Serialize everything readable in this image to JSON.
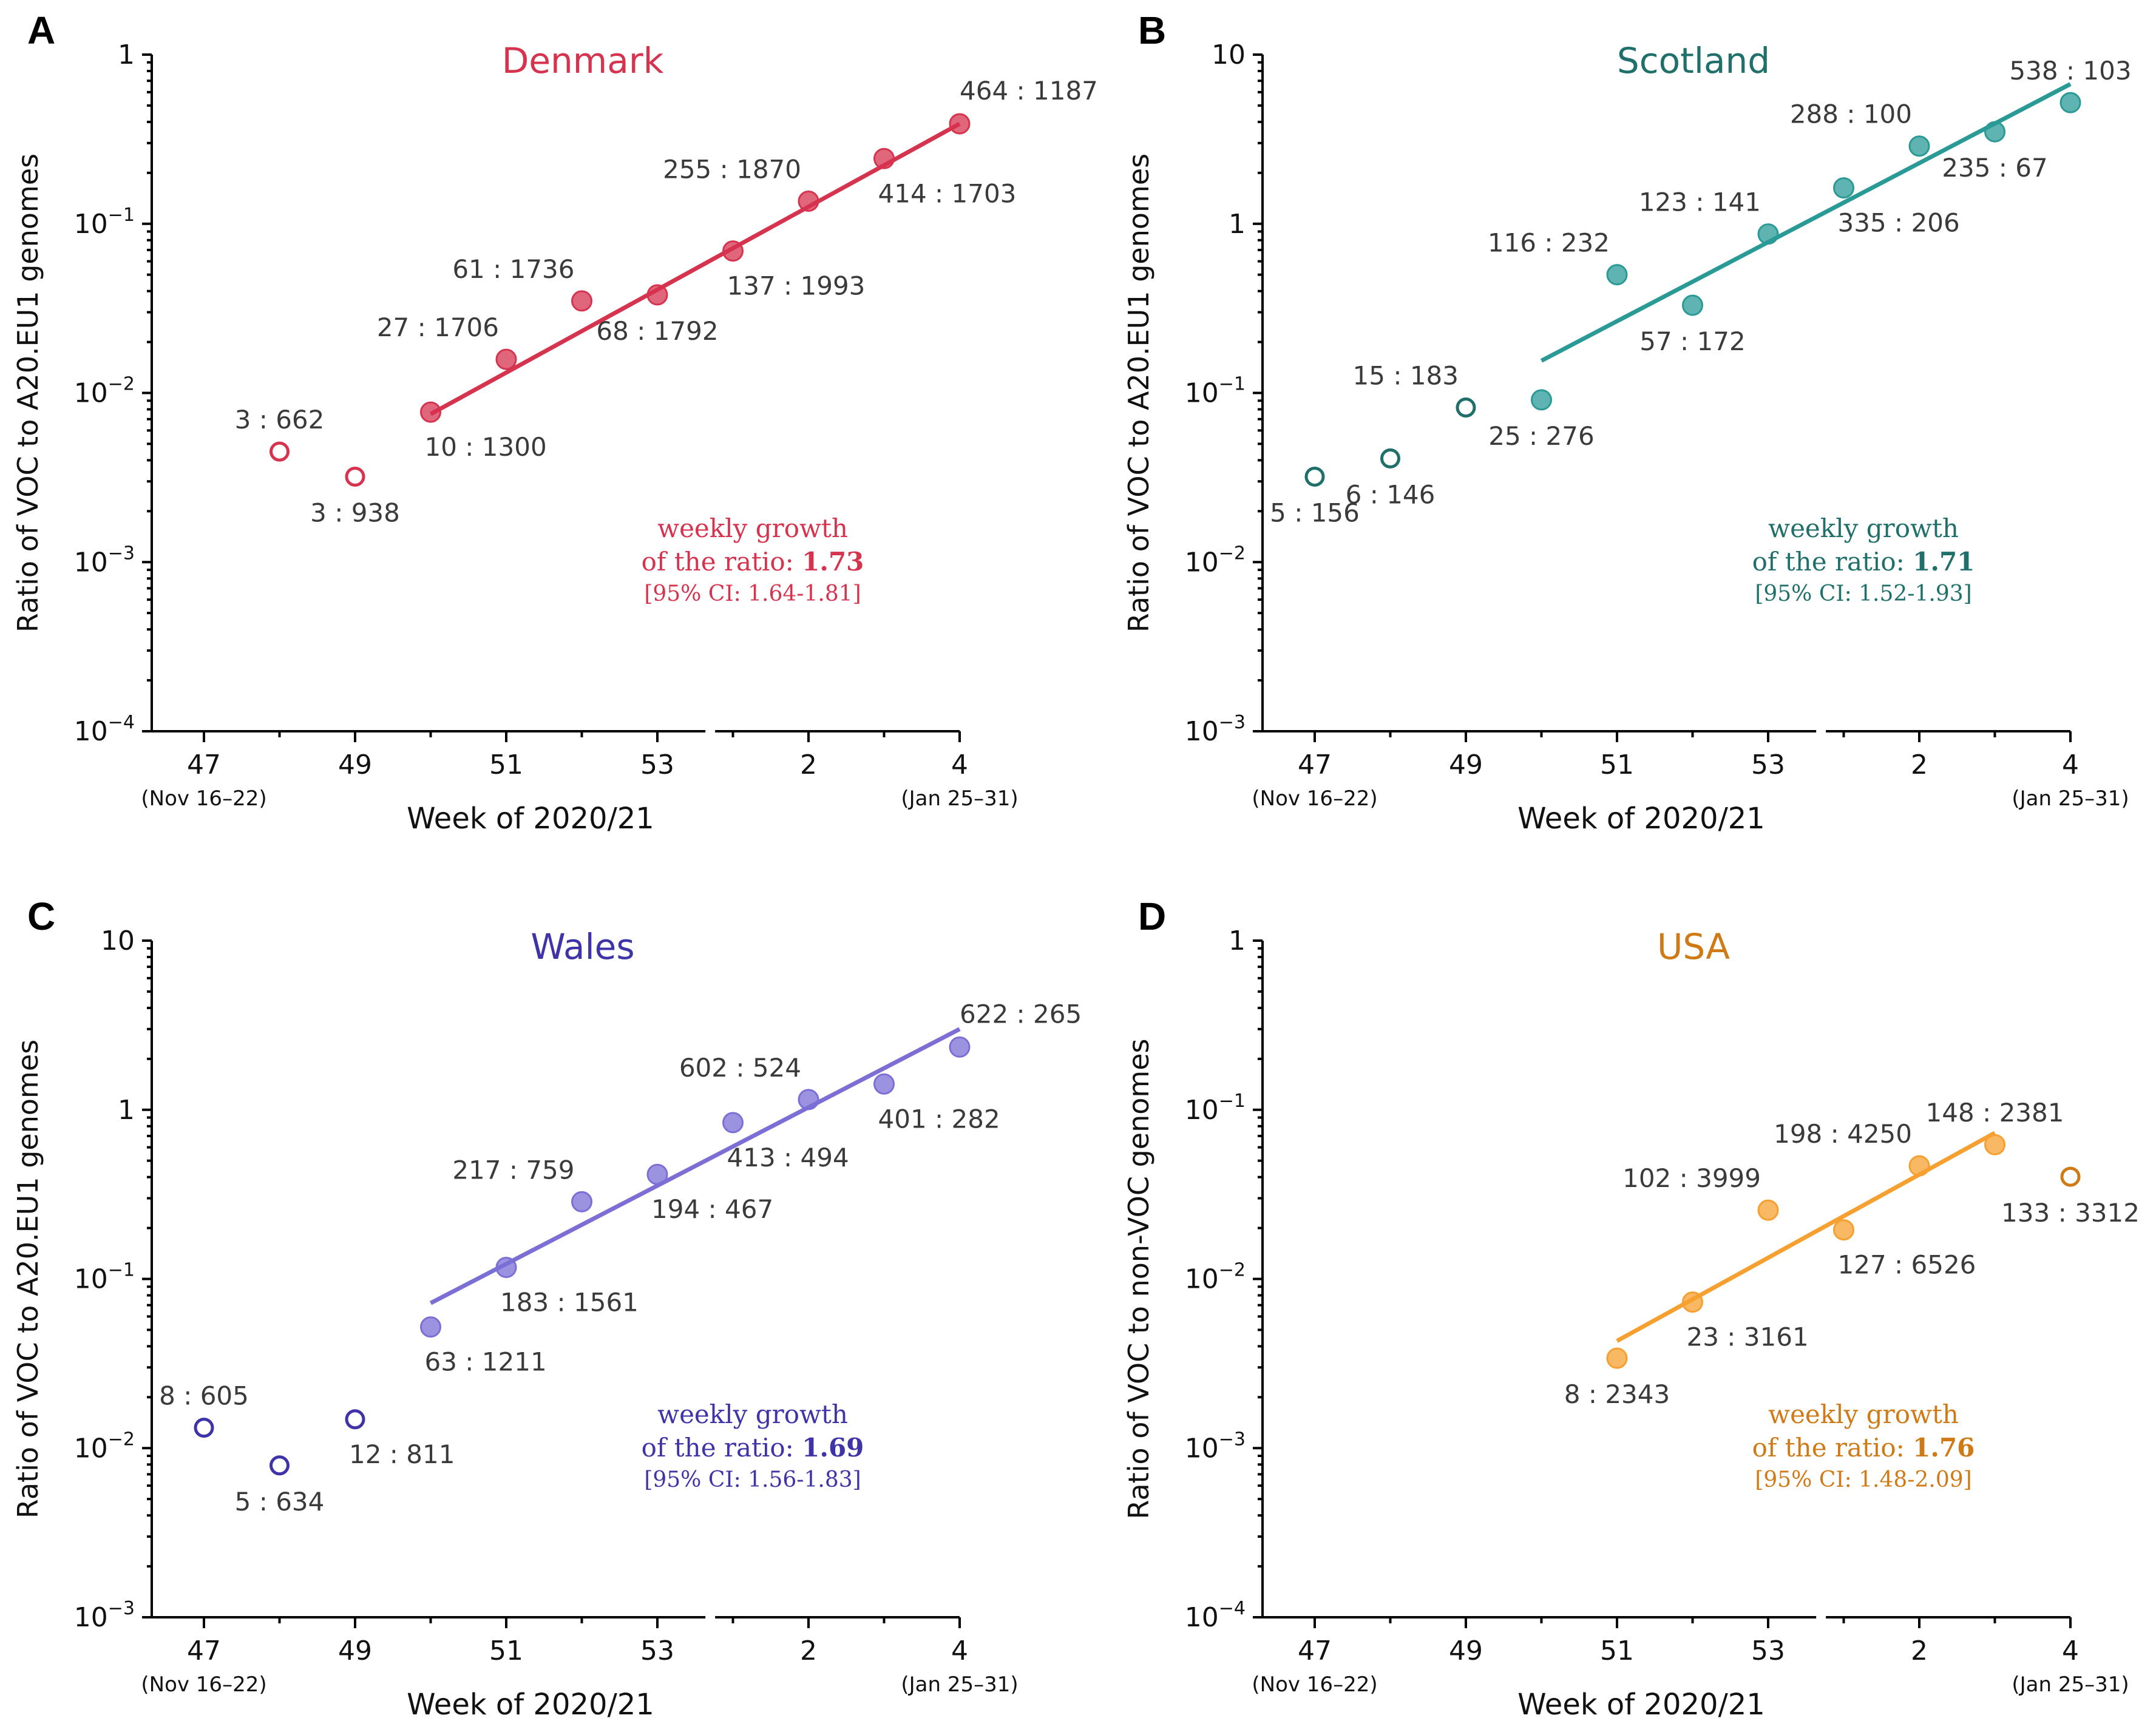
{
  "chart_data": [
    {
      "panel": "A",
      "type": "scatter",
      "title": "Denmark",
      "color": "#d6334f",
      "xlabel": "Week of 2020/21",
      "ylabel": "Ratio of VOC to A20.EU1 genomes",
      "x_ticks": [
        {
          "week": 47,
          "label": "47",
          "sub": "(Nov 16–22)"
        },
        {
          "week": 49,
          "label": "49"
        },
        {
          "week": 51,
          "label": "51"
        },
        {
          "week": 53,
          "label": "53"
        },
        {
          "week": 55,
          "label": "2"
        },
        {
          "week": 57,
          "label": "4",
          "sub": "(Jan 25–31)"
        }
      ],
      "ylim_exp": [
        -4,
        0
      ],
      "y_ticks": [
        {
          "exp": -4,
          "base": "10",
          "sup": "−4"
        },
        {
          "exp": -3,
          "base": "10",
          "sup": "−3"
        },
        {
          "exp": -2,
          "base": "10",
          "sup": "−2"
        },
        {
          "exp": -1,
          "base": "10",
          "sup": "−1"
        },
        {
          "exp": 0,
          "base": "1",
          "sup": ""
        }
      ],
      "points": [
        {
          "week": 48,
          "ratio": 0.0045,
          "filled": false,
          "label": "3 : 662",
          "pos": "above"
        },
        {
          "week": 49,
          "ratio": 0.0032,
          "filled": false,
          "label": "3 : 938",
          "pos": "below"
        },
        {
          "week": 50,
          "ratio": 0.0077,
          "filled": true,
          "label": "10 : 1300",
          "pos": "below-right"
        },
        {
          "week": 51,
          "ratio": 0.0158,
          "filled": true,
          "label": "27 : 1706",
          "pos": "above-left"
        },
        {
          "week": 52,
          "ratio": 0.035,
          "filled": true,
          "label": "61 : 1736",
          "pos": "above-left"
        },
        {
          "week": 53,
          "ratio": 0.038,
          "filled": true,
          "label": "68 : 1792",
          "pos": "below"
        },
        {
          "week": 54,
          "ratio": 0.069,
          "filled": true,
          "label": "137 : 1993",
          "pos": "below-right"
        },
        {
          "week": 55,
          "ratio": 0.136,
          "filled": true,
          "label": "255 : 1870",
          "pos": "above-left"
        },
        {
          "week": 56,
          "ratio": 0.243,
          "filled": true,
          "label": "414 : 1703",
          "pos": "below-right"
        },
        {
          "week": 57,
          "ratio": 0.39,
          "filled": true,
          "label": "464 : 1187",
          "pos": "above-right"
        }
      ],
      "fit": {
        "x0": 50,
        "y0": 0.0075,
        "x1": 57,
        "y1": 0.39
      },
      "annotation": {
        "line1": "weekly growth",
        "line2_prefix": "of the ratio: ",
        "value": "1.73",
        "ci": "[95% CI: 1.64-1.81]"
      }
    },
    {
      "panel": "B",
      "type": "scatter",
      "title": "Scotland",
      "color": "#2a9a96",
      "title_color": "#1f6f6b",
      "xlabel": "Week of 2020/21",
      "ylabel": "Ratio of VOC to A20.EU1 genomes",
      "x_ticks": [
        {
          "week": 47,
          "label": "47",
          "sub": "(Nov 16–22)"
        },
        {
          "week": 49,
          "label": "49"
        },
        {
          "week": 51,
          "label": "51"
        },
        {
          "week": 53,
          "label": "53"
        },
        {
          "week": 55,
          "label": "2"
        },
        {
          "week": 57,
          "label": "4",
          "sub": "(Jan 25–31)"
        }
      ],
      "ylim_exp": [
        -3,
        1
      ],
      "y_ticks": [
        {
          "exp": -3,
          "base": "10",
          "sup": "−3"
        },
        {
          "exp": -2,
          "base": "10",
          "sup": "−2"
        },
        {
          "exp": -1,
          "base": "10",
          "sup": "−1"
        },
        {
          "exp": 0,
          "base": "1",
          "sup": ""
        },
        {
          "exp": 1,
          "base": "10",
          "sup": ""
        }
      ],
      "points": [
        {
          "week": 47,
          "ratio": 0.032,
          "filled": false,
          "label": "5 : 156",
          "pos": "below"
        },
        {
          "week": 48,
          "ratio": 0.041,
          "filled": false,
          "label": "6 : 146",
          "pos": "below"
        },
        {
          "week": 49,
          "ratio": 0.082,
          "filled": false,
          "label": "15 : 183",
          "pos": "above-left"
        },
        {
          "week": 50,
          "ratio": 0.091,
          "filled": true,
          "label": "25 : 276",
          "pos": "below"
        },
        {
          "week": 51,
          "ratio": 0.5,
          "filled": true,
          "label": "116 : 232",
          "pos": "above-left"
        },
        {
          "week": 52,
          "ratio": 0.33,
          "filled": true,
          "label": "57 : 172",
          "pos": "below"
        },
        {
          "week": 53,
          "ratio": 0.87,
          "filled": true,
          "label": "123 : 141",
          "pos": "above-left"
        },
        {
          "week": 54,
          "ratio": 1.63,
          "filled": true,
          "label": "335 : 206",
          "pos": "below-right"
        },
        {
          "week": 55,
          "ratio": 2.88,
          "filled": true,
          "label": "288 : 100",
          "pos": "above-left"
        },
        {
          "week": 56,
          "ratio": 3.5,
          "filled": true,
          "label": "235 : 67",
          "pos": "below"
        },
        {
          "week": 57,
          "ratio": 5.2,
          "filled": true,
          "label": "538 : 103",
          "pos": "above"
        }
      ],
      "fit": {
        "x0": 50,
        "y0": 0.155,
        "x1": 57,
        "y1": 6.7
      },
      "annotation": {
        "line1": "weekly growth",
        "line2_prefix": "of the ratio: ",
        "value": "1.71",
        "ci": "[95% CI: 1.52-1.93]"
      }
    },
    {
      "panel": "C",
      "type": "scatter",
      "title": "Wales",
      "color": "#7b6fd6",
      "title_color": "#3f33a8",
      "xlabel": "Week of 2020/21",
      "ylabel": "Ratio of VOC to A20.EU1 genomes",
      "x_ticks": [
        {
          "week": 47,
          "label": "47",
          "sub": "(Nov 16–22)"
        },
        {
          "week": 49,
          "label": "49"
        },
        {
          "week": 51,
          "label": "51"
        },
        {
          "week": 53,
          "label": "53"
        },
        {
          "week": 55,
          "label": "2"
        },
        {
          "week": 57,
          "label": "4",
          "sub": "(Jan 25–31)"
        }
      ],
      "ylim_exp": [
        -3,
        1
      ],
      "y_ticks": [
        {
          "exp": -3,
          "base": "10",
          "sup": "−3"
        },
        {
          "exp": -2,
          "base": "10",
          "sup": "−2"
        },
        {
          "exp": -1,
          "base": "10",
          "sup": "−1"
        },
        {
          "exp": 0,
          "base": "1",
          "sup": ""
        },
        {
          "exp": 1,
          "base": "10",
          "sup": ""
        }
      ],
      "points": [
        {
          "week": 47,
          "ratio": 0.0132,
          "filled": false,
          "label": "8 : 605",
          "pos": "above"
        },
        {
          "week": 48,
          "ratio": 0.0079,
          "filled": false,
          "label": "5 : 634",
          "pos": "below"
        },
        {
          "week": 49,
          "ratio": 0.0148,
          "filled": false,
          "label": "12 : 811",
          "pos": "below-right"
        },
        {
          "week": 50,
          "ratio": 0.052,
          "filled": true,
          "label": "63 : 1211",
          "pos": "below-right"
        },
        {
          "week": 51,
          "ratio": 0.117,
          "filled": true,
          "label": "183 : 1561",
          "pos": "below-right"
        },
        {
          "week": 52,
          "ratio": 0.286,
          "filled": true,
          "label": "217 : 759",
          "pos": "above-left"
        },
        {
          "week": 53,
          "ratio": 0.415,
          "filled": true,
          "label": "194 : 467",
          "pos": "below-right"
        },
        {
          "week": 54,
          "ratio": 0.84,
          "filled": true,
          "label": "413 : 494",
          "pos": "below-right"
        },
        {
          "week": 55,
          "ratio": 1.15,
          "filled": true,
          "label": "602 : 524",
          "pos": "above-left"
        },
        {
          "week": 56,
          "ratio": 1.42,
          "filled": true,
          "label": "401 : 282",
          "pos": "below-right"
        },
        {
          "week": 57,
          "ratio": 2.35,
          "filled": true,
          "label": "622 : 265",
          "pos": "above-right"
        }
      ],
      "fit": {
        "x0": 50,
        "y0": 0.072,
        "x1": 57,
        "y1": 3.0
      },
      "annotation": {
        "line1": "weekly growth",
        "line2_prefix": "of the ratio: ",
        "value": "1.69",
        "ci": "[95% CI: 1.56-1.83]"
      }
    },
    {
      "panel": "D",
      "type": "scatter",
      "title": "USA",
      "color": "#f5a030",
      "title_color": "#d07a16",
      "xlabel": "Week of 2020/21",
      "ylabel": "Ratio of VOC to non-VOC genomes",
      "x_ticks": [
        {
          "week": 47,
          "label": "47",
          "sub": "(Nov 16–22)"
        },
        {
          "week": 49,
          "label": "49"
        },
        {
          "week": 51,
          "label": "51"
        },
        {
          "week": 53,
          "label": "53"
        },
        {
          "week": 55,
          "label": "2"
        },
        {
          "week": 57,
          "label": "4",
          "sub": "(Jan 25–31)"
        }
      ],
      "ylim_exp": [
        -4,
        0
      ],
      "y_ticks": [
        {
          "exp": -4,
          "base": "10",
          "sup": "−4"
        },
        {
          "exp": -3,
          "base": "10",
          "sup": "−3"
        },
        {
          "exp": -2,
          "base": "10",
          "sup": "−2"
        },
        {
          "exp": -1,
          "base": "10",
          "sup": "−1"
        },
        {
          "exp": 0,
          "base": "1",
          "sup": ""
        }
      ],
      "points": [
        {
          "week": 51,
          "ratio": 0.0034,
          "filled": true,
          "label": "8 : 2343",
          "pos": "below"
        },
        {
          "week": 52,
          "ratio": 0.0073,
          "filled": true,
          "label": "23 : 3161",
          "pos": "below-right"
        },
        {
          "week": 53,
          "ratio": 0.0255,
          "filled": true,
          "label": "102 : 3999",
          "pos": "above-left"
        },
        {
          "week": 54,
          "ratio": 0.0195,
          "filled": true,
          "label": "127 : 6526",
          "pos": "below-right"
        },
        {
          "week": 55,
          "ratio": 0.0466,
          "filled": true,
          "label": "198 : 4250",
          "pos": "above-left"
        },
        {
          "week": 56,
          "ratio": 0.0622,
          "filled": true,
          "label": "148 : 2381",
          "pos": "above"
        },
        {
          "week": 57,
          "ratio": 0.0402,
          "filled": false,
          "label": "133 : 3312",
          "pos": "below"
        }
      ],
      "fit": {
        "x0": 51,
        "y0": 0.0043,
        "x1": 56,
        "y1": 0.073
      },
      "annotation": {
        "line1": "weekly growth",
        "line2_prefix": "of the ratio: ",
        "value": "1.76",
        "ci": "[95% CI: 1.48-2.09]"
      }
    }
  ]
}
